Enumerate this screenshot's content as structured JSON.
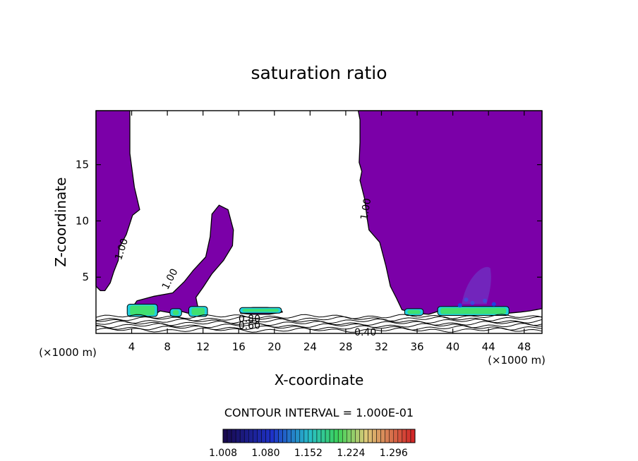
{
  "chart_data": {
    "type": "contour",
    "title": "saturation ratio",
    "xlabel": "X-coordinate",
    "ylabel": "Z-coordinate",
    "x_unit_left": "(×1000 m)",
    "x_unit_right": "(×1000 m)",
    "xlim": [
      0,
      50
    ],
    "ylim": [
      0,
      19.8
    ],
    "x_ticks": [
      4,
      8,
      12,
      16,
      20,
      24,
      28,
      32,
      36,
      40,
      44,
      48
    ],
    "y_ticks": [
      5,
      10,
      15
    ],
    "contour_labels": [
      "1.00",
      "1.00",
      "1.00",
      "0.80",
      "0.60",
      "0.40"
    ],
    "contour_interval_text": "CONTOUR INTERVAL = 1.000E-01",
    "colorbar": {
      "min": 1.008,
      "max": 1.332,
      "tick_labels": [
        "1.008",
        "1.080",
        "1.152",
        "1.224",
        "1.296"
      ],
      "tick_values": [
        1.008,
        1.08,
        1.152,
        1.224,
        1.296
      ]
    },
    "fill_color": "#7b00a8",
    "colors": {
      "supersat_fill": "#7b00a8",
      "band_cyan": "#20d0e0",
      "band_green": "#40e070",
      "band_blue": "#2040e0"
    },
    "regions": [
      {
        "name": "left-column",
        "polygon": [
          [
            0,
            19.8
          ],
          [
            3.8,
            19.8
          ],
          [
            3.8,
            16
          ],
          [
            4.3,
            13
          ],
          [
            4.9,
            11
          ],
          [
            4.1,
            10.5
          ],
          [
            3.4,
            8.8
          ],
          [
            2.6,
            7.6
          ],
          [
            2.5,
            6.5
          ],
          [
            2.0,
            5.5
          ],
          [
            1.6,
            4.5
          ],
          [
            1.0,
            3.8
          ],
          [
            0.5,
            3.8
          ],
          [
            0,
            4.2
          ]
        ]
      },
      {
        "name": "middle-plume",
        "polygon": [
          [
            3.8,
            2.0
          ],
          [
            4.6,
            2.9
          ],
          [
            6.5,
            3.3
          ],
          [
            8.6,
            3.6
          ],
          [
            9.9,
            4.6
          ],
          [
            10.9,
            5.6
          ],
          [
            12.3,
            6.8
          ],
          [
            12.8,
            8.6
          ],
          [
            13.0,
            10.6
          ],
          [
            13.8,
            11.4
          ],
          [
            14.8,
            11.0
          ],
          [
            15.4,
            9.2
          ],
          [
            15.3,
            7.8
          ],
          [
            14.3,
            6.5
          ],
          [
            13.0,
            5.3
          ],
          [
            12.0,
            4.1
          ],
          [
            11.2,
            3.2
          ],
          [
            11.5,
            2.0
          ],
          [
            10.3,
            1.8
          ],
          [
            9.4,
            2.0
          ],
          [
            8.6,
            1.8
          ],
          [
            7.2,
            2.0
          ],
          [
            6.8,
            1.8
          ]
        ]
      },
      {
        "name": "small-puff",
        "polygon": [
          [
            16.2,
            1.8
          ],
          [
            16.6,
            2.2
          ],
          [
            17.6,
            2.3
          ],
          [
            19.2,
            2.3
          ],
          [
            20.6,
            2.2
          ],
          [
            20.9,
            1.9
          ],
          [
            19.4,
            1.7
          ],
          [
            17.4,
            1.7
          ]
        ]
      },
      {
        "name": "right-column",
        "polygon": [
          [
            29.4,
            19.8
          ],
          [
            29.6,
            19.0
          ],
          [
            29.6,
            17
          ],
          [
            29.5,
            15.2
          ],
          [
            29.8,
            14.4
          ],
          [
            29.6,
            13.6
          ],
          [
            30.1,
            12.0
          ],
          [
            30.4,
            10.2
          ],
          [
            30.6,
            9.2
          ],
          [
            31.8,
            8.1
          ],
          [
            32.5,
            6.0
          ],
          [
            33.0,
            4.2
          ],
          [
            33.7,
            3.1
          ],
          [
            34.3,
            2.1
          ],
          [
            35.8,
            1.8
          ],
          [
            37.3,
            1.7
          ],
          [
            38.5,
            2.0
          ],
          [
            40.2,
            2.1
          ],
          [
            42.5,
            2.0
          ],
          [
            44.5,
            1.8
          ],
          [
            46.2,
            1.8
          ],
          [
            47.6,
            1.9
          ],
          [
            48.6,
            2.0
          ],
          [
            50,
            2.2
          ],
          [
            50,
            19.8
          ]
        ]
      }
    ],
    "bands": [
      {
        "name": "band-1",
        "x": [
          3.5,
          6.9
        ],
        "y": [
          1.5,
          2.6
        ]
      },
      {
        "name": "band-2",
        "x": [
          8.3,
          9.6
        ],
        "y": [
          1.5,
          2.2
        ]
      },
      {
        "name": "band-3",
        "x": [
          10.4,
          12.5
        ],
        "y": [
          1.5,
          2.4
        ]
      },
      {
        "name": "band-4",
        "x": [
          16.1,
          20.8
        ],
        "y": [
          1.8,
          2.3
        ]
      },
      {
        "name": "band-5",
        "x": [
          34.6,
          36.7
        ],
        "y": [
          1.6,
          2.2
        ]
      },
      {
        "name": "band-6",
        "x": [
          38.3,
          46.3
        ],
        "y": [
          1.6,
          2.4
        ]
      }
    ],
    "layer_levels": [
      0.3,
      0.5,
      0.7,
      0.9,
      1.1,
      1.3,
      1.5
    ]
  }
}
